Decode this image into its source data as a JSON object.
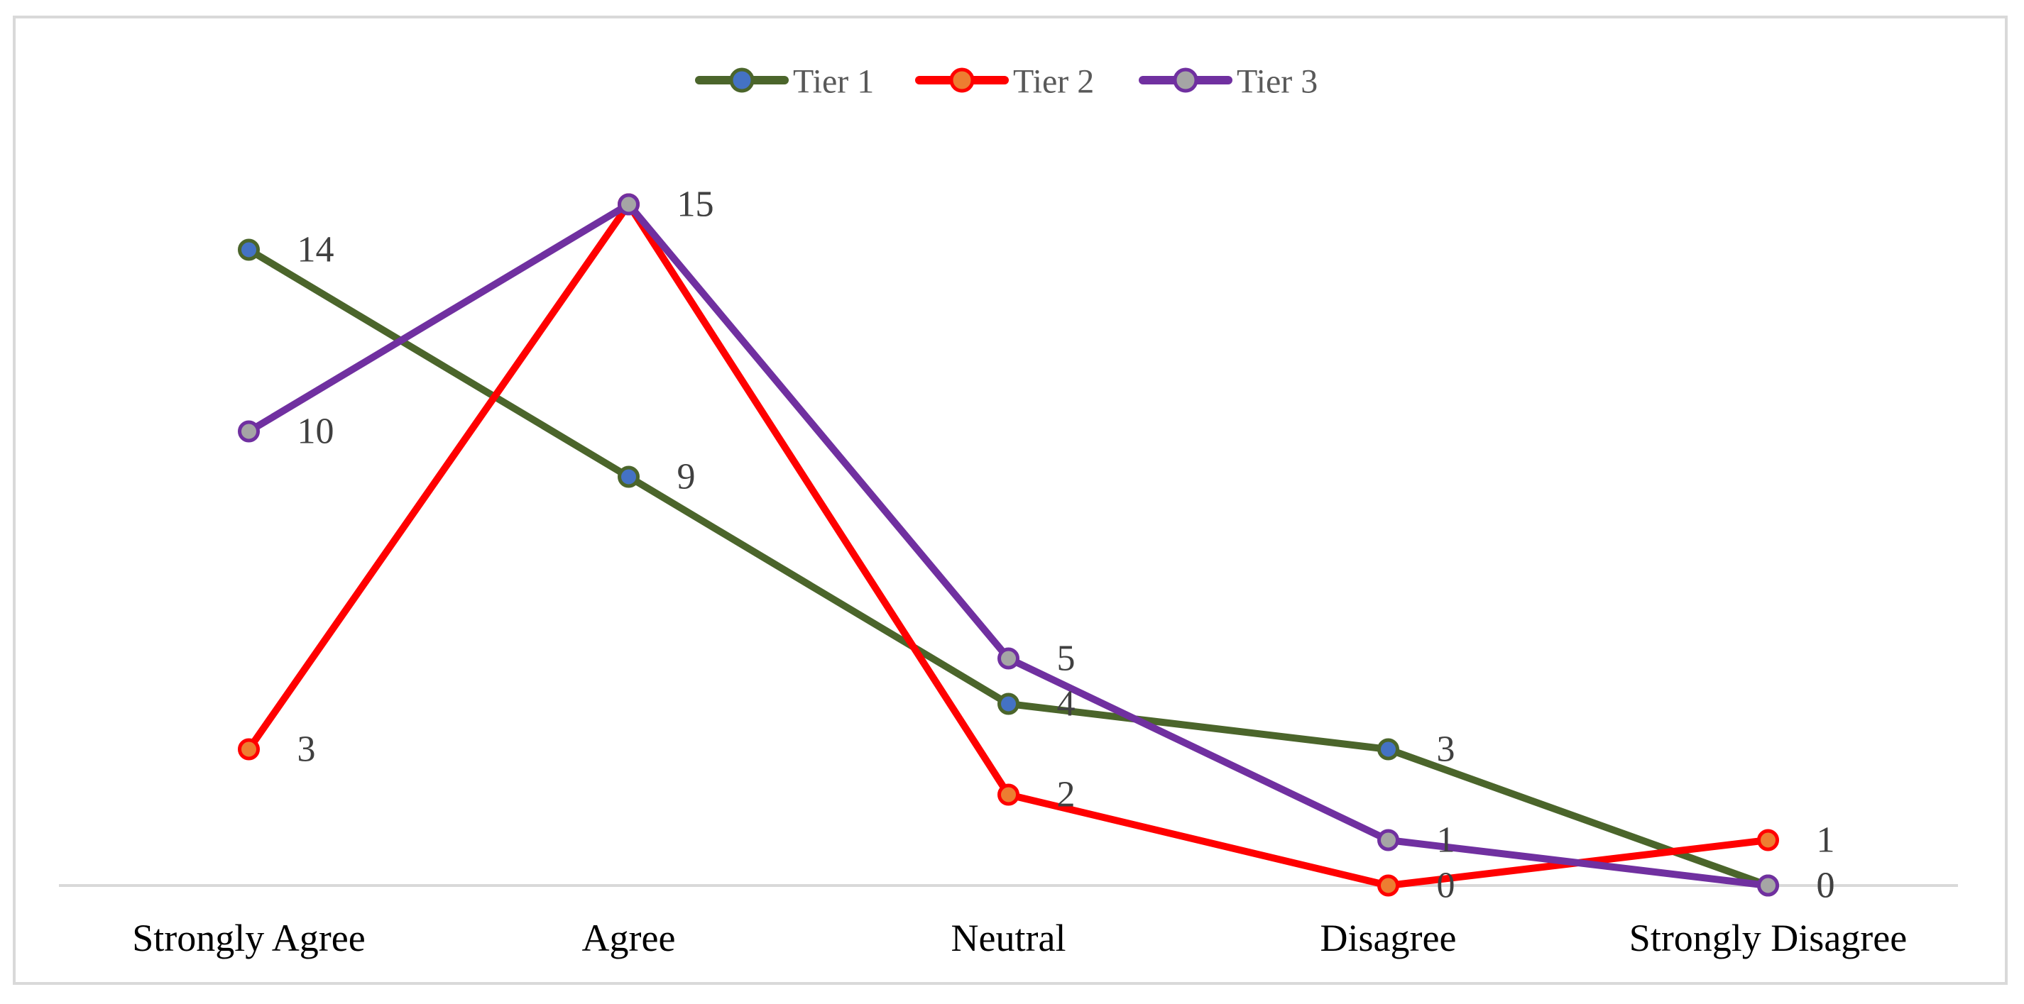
{
  "chart_data": {
    "type": "line",
    "categories": [
      "Strongly Agree",
      "Agree",
      "Neutral",
      "Disagree",
      "Strongly Disagree"
    ],
    "series": [
      {
        "name": "Tier 1",
        "values": [
          14,
          9,
          4,
          3,
          0
        ],
        "line_color": "#4B652B",
        "marker_color": "#4472C4"
      },
      {
        "name": "Tier 2",
        "values": [
          3,
          15,
          2,
          0,
          1
        ],
        "line_color": "#FF0000",
        "marker_color": "#ED7D31"
      },
      {
        "name": "Tier 3",
        "values": [
          10,
          15,
          5,
          1,
          0
        ],
        "line_color": "#7030A0",
        "marker_color": "#A5A5A5"
      }
    ],
    "title": "",
    "xlabel": "",
    "ylabel": "",
    "ylim": [
      0,
      16
    ],
    "grid": false,
    "legend_position": "top-center",
    "data_label_position": "right",
    "colors": {
      "chart_border": "#D9D9D9",
      "axis_line": "#D9D9D9",
      "data_label_text": "#404040",
      "category_label_text": "#000000",
      "legend_text": "#595959",
      "background": "#FFFFFF"
    }
  }
}
